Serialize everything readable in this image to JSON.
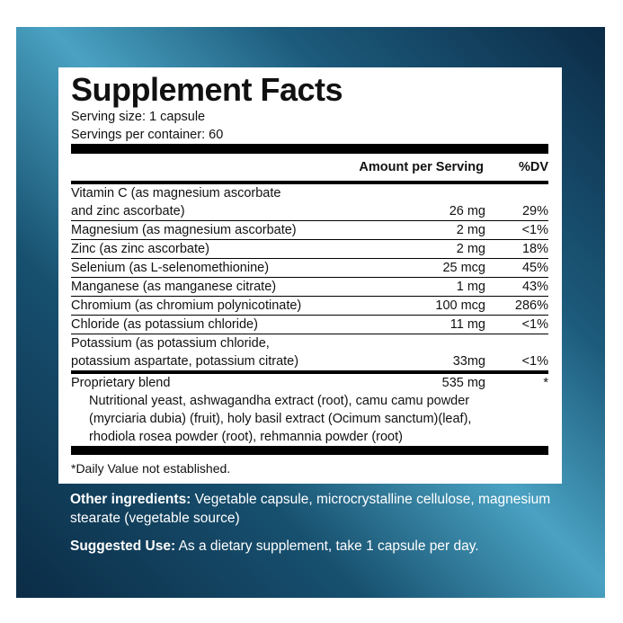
{
  "title": "Supplement Facts",
  "serving_size": "Serving size: 1 capsule",
  "servings_per_container": "Servings per container: 60",
  "table": {
    "header": [
      "Amount per Serving",
      "%DV"
    ],
    "rows": [
      {
        "name": [
          "Vitamin C (as magnesium ascorbate",
          "and zinc ascorbate)"
        ],
        "amount": "26 mg",
        "dv": "29%"
      },
      {
        "name": [
          "Magnesium (as magnesium ascorbate)"
        ],
        "amount": "2 mg",
        "dv": "<1%"
      },
      {
        "name": [
          "Zinc (as zinc ascorbate)"
        ],
        "amount": "2 mg",
        "dv": "18%"
      },
      {
        "name": [
          "Selenium (as L-selenomethionine)"
        ],
        "amount": "25 mcg",
        "dv": "45%"
      },
      {
        "name": [
          "Manganese (as manganese citrate)"
        ],
        "amount": "1 mg",
        "dv": "43%"
      },
      {
        "name": [
          "Chromium (as chromium polynicotinate)"
        ],
        "amount": "100 mcg",
        "dv": "286%"
      },
      {
        "name": [
          "Chloride (as potassium chloride)"
        ],
        "amount": "11 mg",
        "dv": "<1%"
      },
      {
        "name": [
          "Potassium (as potassium chloride,",
          "potassium aspartate, potassium citrate)"
        ],
        "amount": "33mg",
        "dv": "<1%"
      }
    ],
    "blend": {
      "name": "Proprietary blend",
      "amount": "535 mg",
      "dv": "*",
      "description": [
        "Nutritional yeast, ashwagandha extract (root), camu camu powder",
        "(myrciaria dubia) (fruit), holy basil extract (Ocimum sanctum)(leaf),",
        "rhodiola rosea powder (root), rehmannia powder (root)"
      ]
    }
  },
  "footnote": "*Daily Value not established.",
  "other_ingredients": {
    "label": "Other ingredients:",
    "text": "Vegetable capsule, microcrystalline cellulose, magnesium stearate (vegetable source)"
  },
  "suggested_use": {
    "label": "Suggested Use:",
    "text": "As a dietary supplement, take 1 capsule per day."
  }
}
